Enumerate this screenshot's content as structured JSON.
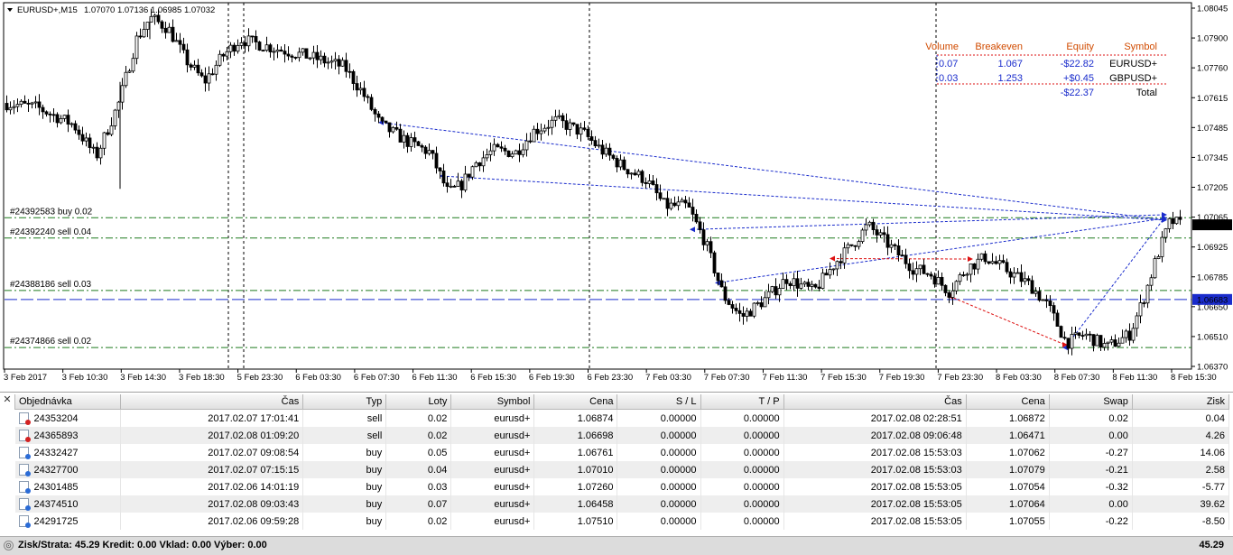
{
  "chart": {
    "symbol_caption": "EURUSD+,M15",
    "ohlc": "1.07070 1.07136 1.06985 1.07032",
    "price_ticks": [
      "1.08045",
      "1.07900",
      "1.07760",
      "1.07615",
      "1.07485",
      "1.07345",
      "1.07205",
      "1.07065",
      "1.06925",
      "1.06785",
      "1.06650",
      "1.06510",
      "1.06370"
    ],
    "current_price_label": "1.07032",
    "marker_price_label": "1.06683",
    "time_ticks": [
      "3 Feb 2017",
      "3 Feb 10:30",
      "3 Feb 14:30",
      "3 Feb 18:30",
      "5 Feb 23:30",
      "6 Feb 03:30",
      "6 Feb 07:30",
      "6 Feb 11:30",
      "6 Feb 15:30",
      "6 Feb 19:30",
      "6 Feb 23:30",
      "7 Feb 03:30",
      "7 Feb 07:30",
      "7 Feb 11:30",
      "7 Feb 15:30",
      "7 Feb 19:30",
      "7 Feb 23:30",
      "8 Feb 03:30",
      "8 Feb 07:30",
      "8 Feb 11:30",
      "8 Feb 15:30"
    ],
    "order_lines": [
      {
        "label": "#24392583 buy 0.02",
        "price": 1.07065
      },
      {
        "label": "#24392240 sell 0.04",
        "price": 1.0697
      },
      {
        "label": "#24388186 sell 0.03",
        "price": 1.06725
      },
      {
        "label": "#24374866 sell 0.02",
        "price": 1.06458
      }
    ],
    "marker_price": 1.06683,
    "current_price": 1.07032,
    "colors": {
      "order_line": "#1e7a1e",
      "marker_line": "#1a2ccc",
      "buy_trade": "#1a2ccc",
      "sell_trade": "#dd1111",
      "candles": "#000000",
      "label_bg": "#1a2ccc"
    }
  },
  "summary": {
    "headers": [
      "Volume",
      "Breakeven",
      "Equity",
      "Symbol"
    ],
    "rows": [
      {
        "volume": "0.07",
        "breakeven": "1.067",
        "equity": "-$22.82",
        "symbol": "EURUSD+"
      },
      {
        "volume": "0.03",
        "breakeven": "1.253",
        "equity": "+$0.45",
        "symbol": "GBPUSD+"
      }
    ],
    "total_equity": "-$22.37",
    "total_label": "Total",
    "header_color": "#d14b00",
    "value_color": "#1a2ccc"
  },
  "terminal": {
    "close_glyph": "✕",
    "headers": [
      "Objednávka",
      "Čas",
      "Typ",
      "Loty",
      "Symbol",
      "Cena",
      "S / L",
      "T / P",
      "Čas",
      "Cena",
      "Swap",
      "Zisk"
    ],
    "rows": [
      {
        "order": "24353204",
        "open_time": "2017.02.07 17:01:41",
        "type": "sell",
        "lots": "0.02",
        "symbol": "eurusd+",
        "price": "1.06874",
        "sl": "0.00000",
        "tp": "0.00000",
        "close_time": "2017.02.08 02:28:51",
        "close_price": "1.06872",
        "swap": "0.02",
        "profit": "0.04"
      },
      {
        "order": "24365893",
        "open_time": "2017.02.08 01:09:20",
        "type": "sell",
        "lots": "0.02",
        "symbol": "eurusd+",
        "price": "1.06698",
        "sl": "0.00000",
        "tp": "0.00000",
        "close_time": "2017.02.08 09:06:48",
        "close_price": "1.06471",
        "swap": "0.00",
        "profit": "4.26"
      },
      {
        "order": "24332427",
        "open_time": "2017.02.07 09:08:54",
        "type": "buy",
        "lots": "0.05",
        "symbol": "eurusd+",
        "price": "1.06761",
        "sl": "0.00000",
        "tp": "0.00000",
        "close_time": "2017.02.08 15:53:03",
        "close_price": "1.07062",
        "swap": "-0.27",
        "profit": "14.06"
      },
      {
        "order": "24327700",
        "open_time": "2017.02.07 07:15:15",
        "type": "buy",
        "lots": "0.04",
        "symbol": "eurusd+",
        "price": "1.07010",
        "sl": "0.00000",
        "tp": "0.00000",
        "close_time": "2017.02.08 15:53:03",
        "close_price": "1.07079",
        "swap": "-0.21",
        "profit": "2.58"
      },
      {
        "order": "24301485",
        "open_time": "2017.02.06 14:01:19",
        "type": "buy",
        "lots": "0.03",
        "symbol": "eurusd+",
        "price": "1.07260",
        "sl": "0.00000",
        "tp": "0.00000",
        "close_time": "2017.02.08 15:53:05",
        "close_price": "1.07054",
        "swap": "-0.32",
        "profit": "-5.77"
      },
      {
        "order": "24374510",
        "open_time": "2017.02.08 09:03:43",
        "type": "buy",
        "lots": "0.07",
        "symbol": "eurusd+",
        "price": "1.06458",
        "sl": "0.00000",
        "tp": "0.00000",
        "close_time": "2017.02.08 15:53:05",
        "close_price": "1.07064",
        "swap": "0.00",
        "profit": "39.62"
      },
      {
        "order": "24291725",
        "open_time": "2017.02.06 09:59:28",
        "type": "buy",
        "lots": "0.02",
        "symbol": "eurusd+",
        "price": "1.07510",
        "sl": "0.00000",
        "tp": "0.00000",
        "close_time": "2017.02.08 15:53:05",
        "close_price": "1.07055",
        "swap": "-0.22",
        "profit": "-8.50"
      }
    ]
  },
  "status": {
    "icon_glyph": "⊙",
    "text": "Zisk/Strata: 45.29  Kredit: 0.00  Vklad: 0.00  Výber: 0.00",
    "total": "45.29"
  }
}
